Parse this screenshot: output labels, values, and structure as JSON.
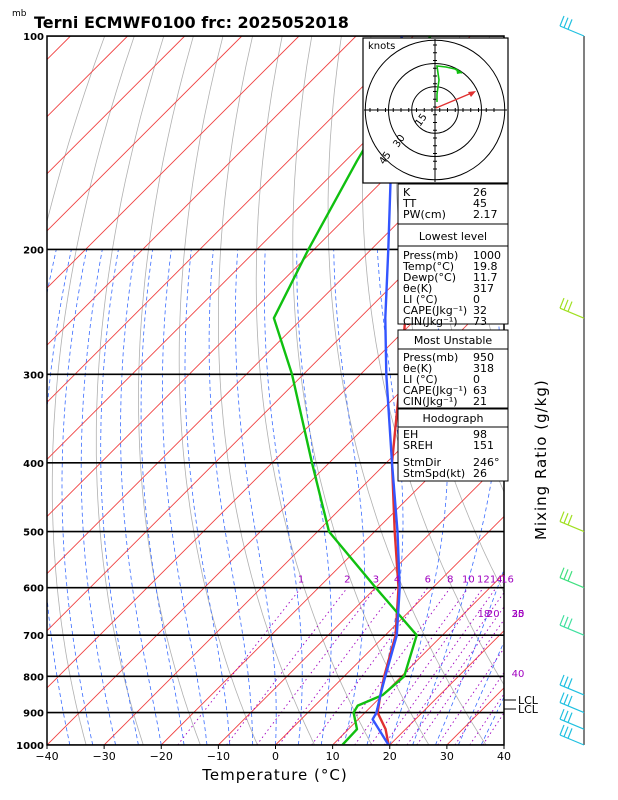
{
  "header": {
    "units_top": "mb",
    "title": "Terni ECMWF0100  frc: 2025052018"
  },
  "chart_data": {
    "type": "line",
    "title": "Terni ECMWF0100  frc: 2025052018",
    "xlabel": "Temperature (°C)",
    "ylabel": "mb",
    "xlim": [
      -40,
      40
    ],
    "ylim": [
      1000,
      100
    ],
    "yscale": "log",
    "skew": true,
    "x_ticks": [
      "−40",
      "−30",
      "−20",
      "−10",
      "0",
      "10",
      "20",
      "30",
      "40"
    ],
    "p_ticks": [
      "100",
      "200",
      "300",
      "400",
      "500",
      "600",
      "700",
      "800",
      "900",
      "1000"
    ],
    "series": [
      {
        "name": "Temperature",
        "color": "#e03030",
        "points": [
          [
            1000,
            19.8
          ],
          [
            950,
            16.5
          ],
          [
            900,
            12.2
          ],
          [
            850,
            9.6
          ],
          [
            800,
            7.0
          ],
          [
            700,
            1.8
          ],
          [
            600,
            -6.0
          ],
          [
            500,
            -16.5
          ],
          [
            400,
            -29.0
          ],
          [
            300,
            -43.0
          ],
          [
            250,
            -52.0
          ],
          [
            200,
            -56.5
          ],
          [
            150,
            -57.0
          ],
          [
            100,
            -57.5
          ]
        ]
      },
      {
        "name": "Dewpoint",
        "color": "#10c010",
        "points": [
          [
            1000,
            11.7
          ],
          [
            950,
            11.5
          ],
          [
            900,
            8.0
          ],
          [
            880,
            7.5
          ],
          [
            850,
            10.0
          ],
          [
            800,
            10.5
          ],
          [
            700,
            5.5
          ],
          [
            600,
            -10.0
          ],
          [
            500,
            -28.0
          ],
          [
            400,
            -43.0
          ],
          [
            300,
            -62.0
          ],
          [
            250,
            -75.0
          ],
          [
            200,
            -81.0
          ],
          [
            150,
            -88.0
          ],
          [
            100,
            -97.0
          ]
        ]
      },
      {
        "name": "Parcel",
        "color": "#3355ff",
        "points": [
          [
            1000,
            19.8
          ],
          [
            920,
            12.5
          ],
          [
            900,
            12.0
          ],
          [
            850,
            9.6
          ],
          [
            800,
            7.2
          ],
          [
            700,
            2.0
          ],
          [
            600,
            -5.8
          ],
          [
            500,
            -16.0
          ],
          [
            400,
            -29.0
          ],
          [
            300,
            -45.5
          ],
          [
            250,
            -55.5
          ],
          [
            200,
            -67.0
          ],
          [
            150,
            -82.0
          ],
          [
            100,
            -102.0
          ]
        ]
      }
    ],
    "mixing_ratio_labels": [
      "1",
      "2",
      "3",
      "4",
      "6",
      "8",
      "10",
      "12",
      "14",
      "16",
      "18",
      "20",
      "25",
      "30",
      "35",
      "40"
    ],
    "mixing_ratio_axis_label": "Mixing Ratio (g/kg)",
    "lcl_labels": [
      "LCL",
      "LCL"
    ]
  },
  "hodograph": {
    "units": "knots",
    "ring_labels": [
      "15",
      "30",
      "45"
    ]
  },
  "indices": {
    "rows": [
      [
        "K",
        "26"
      ],
      [
        "TT",
        "45"
      ],
      [
        "PW(cm)",
        "2.17"
      ]
    ]
  },
  "lowest_level": {
    "header": "Lowest level",
    "rows": [
      [
        "Press(mb)",
        "1000"
      ],
      [
        "Temp(°C)",
        "19.8"
      ],
      [
        "Dewp(°C)",
        "11.7"
      ],
      [
        "θe(K)",
        "317"
      ],
      [
        "LI (°C)",
        "0"
      ],
      [
        "CAPE(Jkg⁻¹)",
        "32"
      ],
      [
        "CIN(Jkg⁻¹)",
        "73"
      ]
    ]
  },
  "most_unstable": {
    "header": "Most Unstable",
    "rows": [
      [
        "Press(mb)",
        "950"
      ],
      [
        "θe(K)",
        "318"
      ],
      [
        "LI (°C)",
        "0"
      ],
      [
        "CAPE(Jkg⁻¹)",
        "63"
      ],
      [
        "CIN(Jkg⁻¹)",
        "21"
      ]
    ]
  },
  "hodo_params": {
    "header": "Hodograph",
    "rows": [
      [
        "EH",
        "98"
      ],
      [
        "SREH",
        "151"
      ],
      [
        "StmDir",
        "246°"
      ],
      [
        "StmSpd(kt)",
        "26"
      ]
    ]
  },
  "colors": {
    "isotherm": "#f04040",
    "dry_adiabat": "#b0b0b0",
    "moist_adiabat": "#3a6cff",
    "mixing_ratio": "#a000c0",
    "temperature": "#e03030",
    "dewpoint": "#10c010",
    "parcel": "#3355ff",
    "wind_barb": "#20c0e0",
    "barb_low": "#60e040"
  }
}
